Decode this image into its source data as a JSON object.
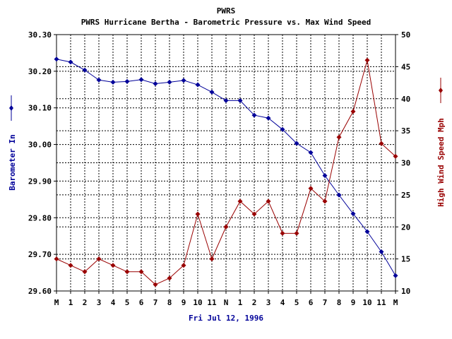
{
  "chart_data": {
    "type": "line",
    "title": "PWRS",
    "subtitle": "PWRS Hurricane Bertha - Barometric Pressure vs. Max Wind Speed",
    "xlabel": "Fri Jul 12, 1996",
    "categories": [
      "M",
      "1",
      "2",
      "3",
      "4",
      "5",
      "6",
      "7",
      "8",
      "9",
      "10",
      "11",
      "N",
      "1",
      "2",
      "3",
      "4",
      "5",
      "6",
      "7",
      "8",
      "9",
      "10",
      "11",
      "M"
    ],
    "y_left": {
      "label": "Barometer In",
      "range": [
        29.6,
        30.3
      ],
      "ticks": [
        "30.30",
        "30.20",
        "30.10",
        "30.00",
        "29.90",
        "29.80",
        "29.70",
        "29.60"
      ],
      "tick_values": [
        30.3,
        30.2,
        30.1,
        30.0,
        29.9,
        29.8,
        29.7,
        29.6
      ]
    },
    "y_right": {
      "label": "High Wind Speed Mph",
      "range": [
        10,
        50
      ],
      "ticks": [
        "50",
        "45",
        "40",
        "35",
        "30",
        "25",
        "20",
        "15",
        "10"
      ],
      "tick_values": [
        50,
        45,
        40,
        35,
        30,
        25,
        20,
        15,
        10
      ]
    },
    "grid": true,
    "series": [
      {
        "axis": "left",
        "color": "#000099",
        "marker": "diamond",
        "values": [
          30.233,
          30.225,
          30.203,
          30.176,
          30.17,
          30.172,
          30.177,
          30.166,
          30.17,
          30.175,
          30.163,
          30.143,
          30.12,
          30.12,
          30.08,
          30.072,
          30.041,
          30.003,
          29.978,
          29.915,
          29.862,
          29.811,
          29.762,
          29.707,
          29.642
        ]
      },
      {
        "axis": "right",
        "color": "#990000",
        "marker": "diamond",
        "values": [
          15,
          14,
          13,
          15,
          14,
          13,
          13,
          11,
          12,
          14,
          22,
          15,
          20,
          24,
          22,
          24,
          19,
          19,
          26,
          24,
          34,
          38,
          46,
          33,
          31
        ]
      }
    ]
  }
}
